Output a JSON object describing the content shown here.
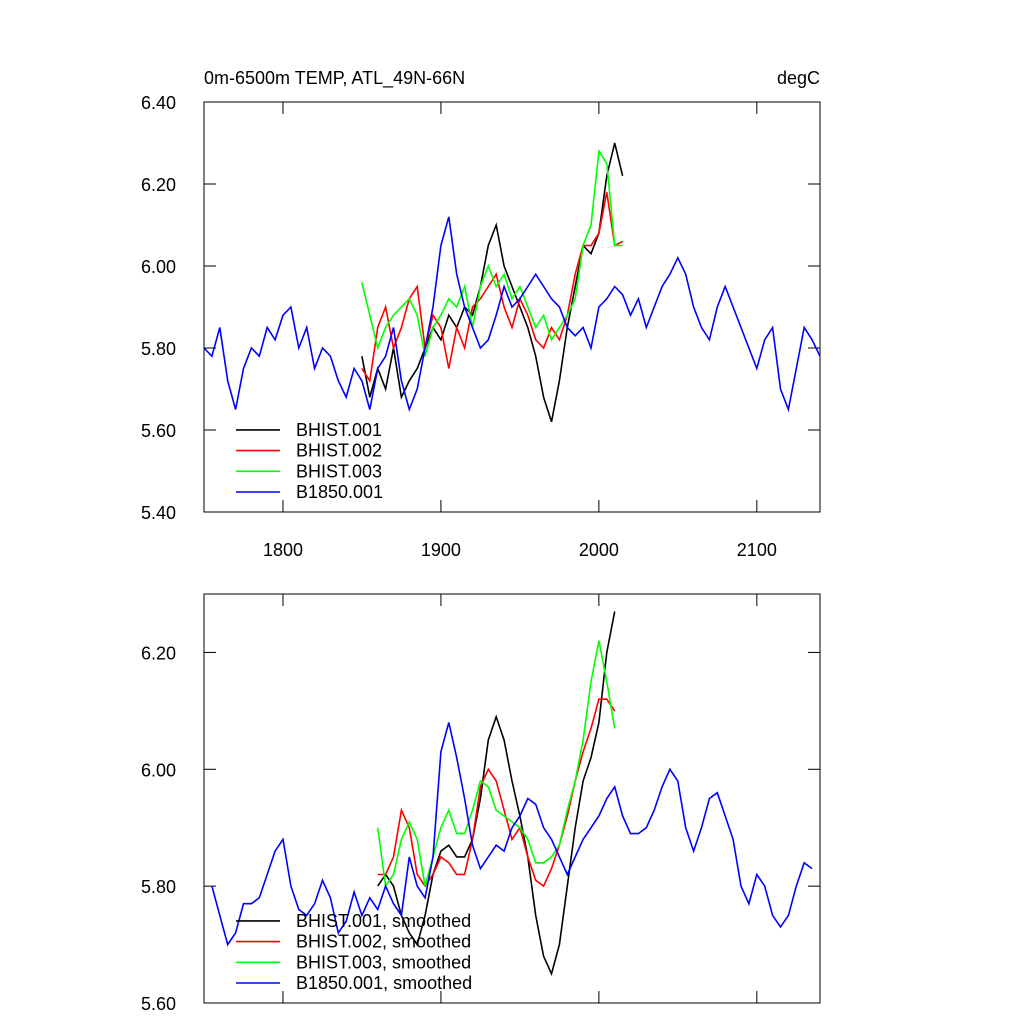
{
  "chart_data": [
    {
      "type": "line",
      "title": "0m-6500m TEMP, ATL_49N-66N",
      "units": "degC",
      "xlim": [
        1750,
        2140
      ],
      "xticks": [
        1800,
        1900,
        2000,
        2100
      ],
      "xtick_labels": true,
      "ylim": [
        5.4,
        6.4
      ],
      "yticks": [
        {
          "value": 5.4,
          "label": "5.40"
        },
        {
          "value": 5.6,
          "label": "5.60"
        },
        {
          "value": 5.8,
          "label": "5.80"
        },
        {
          "value": 6.0,
          "label": "6.00"
        },
        {
          "value": 6.2,
          "label": "6.20"
        },
        {
          "value": 6.4,
          "label": "6.40"
        }
      ],
      "legend": "lower left",
      "series": [
        {
          "name": "BHIST.001",
          "color": "#000000",
          "x": [
            1850,
            1855,
            1860,
            1865,
            1870,
            1875,
            1880,
            1885,
            1890,
            1895,
            1900,
            1905,
            1910,
            1915,
            1920,
            1925,
            1930,
            1935,
            1940,
            1945,
            1950,
            1955,
            1960,
            1965,
            1970,
            1975,
            1980,
            1985,
            1990,
            1995,
            2000,
            2005,
            2010,
            2015
          ],
          "values": [
            5.78,
            5.68,
            5.75,
            5.7,
            5.8,
            5.68,
            5.72,
            5.75,
            5.8,
            5.85,
            5.82,
            5.88,
            5.85,
            5.9,
            5.88,
            5.95,
            6.05,
            6.1,
            6.0,
            5.95,
            5.9,
            5.85,
            5.78,
            5.68,
            5.62,
            5.72,
            5.85,
            5.95,
            6.05,
            6.03,
            6.08,
            6.22,
            6.3,
            6.22
          ]
        },
        {
          "name": "BHIST.002",
          "color": "#ff0000",
          "x": [
            1850,
            1855,
            1860,
            1865,
            1870,
            1875,
            1880,
            1885,
            1890,
            1895,
            1900,
            1905,
            1910,
            1915,
            1920,
            1925,
            1930,
            1935,
            1940,
            1945,
            1950,
            1955,
            1960,
            1965,
            1970,
            1975,
            1980,
            1985,
            1990,
            1995,
            2000,
            2005,
            2010,
            2015
          ],
          "values": [
            5.75,
            5.72,
            5.85,
            5.9,
            5.8,
            5.85,
            5.92,
            5.95,
            5.8,
            5.88,
            5.85,
            5.75,
            5.85,
            5.8,
            5.9,
            5.92,
            5.95,
            5.98,
            5.9,
            5.85,
            5.92,
            5.88,
            5.82,
            5.8,
            5.85,
            5.82,
            5.88,
            5.98,
            6.05,
            6.05,
            6.08,
            6.18,
            6.05,
            6.06
          ]
        },
        {
          "name": "BHIST.003",
          "color": "#00ff00",
          "x": [
            1850,
            1855,
            1860,
            1865,
            1870,
            1875,
            1880,
            1885,
            1890,
            1895,
            1900,
            1905,
            1910,
            1915,
            1920,
            1925,
            1930,
            1935,
            1940,
            1945,
            1950,
            1955,
            1960,
            1965,
            1970,
            1975,
            1980,
            1985,
            1990,
            1995,
            2000,
            2005,
            2010,
            2015
          ],
          "values": [
            5.96,
            5.88,
            5.8,
            5.85,
            5.88,
            5.9,
            5.92,
            5.88,
            5.78,
            5.85,
            5.88,
            5.92,
            5.9,
            5.95,
            5.85,
            5.95,
            6.0,
            5.95,
            5.98,
            5.92,
            5.95,
            5.9,
            5.85,
            5.88,
            5.82,
            5.85,
            5.88,
            5.92,
            6.05,
            6.1,
            6.28,
            6.25,
            6.05,
            6.05
          ]
        },
        {
          "name": "B1850.001",
          "color": "#0000ff",
          "x": [
            1750,
            1755,
            1760,
            1765,
            1770,
            1775,
            1780,
            1785,
            1790,
            1795,
            1800,
            1805,
            1810,
            1815,
            1820,
            1825,
            1830,
            1835,
            1840,
            1845,
            1850,
            1855,
            1860,
            1865,
            1870,
            1875,
            1880,
            1885,
            1890,
            1895,
            1900,
            1905,
            1910,
            1915,
            1920,
            1925,
            1930,
            1935,
            1940,
            1945,
            1950,
            1955,
            1960,
            1965,
            1970,
            1975,
            1980,
            1985,
            1990,
            1995,
            2000,
            2005,
            2010,
            2015,
            2020,
            2025,
            2030,
            2035,
            2040,
            2045,
            2050,
            2055,
            2060,
            2065,
            2070,
            2075,
            2080,
            2085,
            2090,
            2095,
            2100,
            2105,
            2110,
            2115,
            2120,
            2125,
            2130,
            2135,
            2140
          ],
          "values": [
            5.8,
            5.78,
            5.85,
            5.72,
            5.65,
            5.75,
            5.8,
            5.78,
            5.85,
            5.82,
            5.88,
            5.9,
            5.8,
            5.85,
            5.75,
            5.8,
            5.78,
            5.72,
            5.68,
            5.75,
            5.72,
            5.65,
            5.75,
            5.78,
            5.85,
            5.72,
            5.65,
            5.7,
            5.8,
            5.9,
            6.05,
            6.12,
            5.98,
            5.9,
            5.85,
            5.8,
            5.82,
            5.88,
            5.95,
            5.9,
            5.92,
            5.95,
            5.98,
            5.95,
            5.92,
            5.9,
            5.85,
            5.83,
            5.85,
            5.8,
            5.9,
            5.92,
            5.95,
            5.93,
            5.88,
            5.92,
            5.85,
            5.9,
            5.95,
            5.98,
            6.02,
            5.98,
            5.9,
            5.85,
            5.82,
            5.9,
            5.95,
            5.9,
            5.85,
            5.8,
            5.75,
            5.82,
            5.85,
            5.7,
            5.65,
            5.75,
            5.85,
            5.82,
            5.78
          ]
        }
      ]
    },
    {
      "type": "line",
      "xlim": [
        1750,
        2140
      ],
      "xticks": [
        1800,
        1900,
        2000,
        2100
      ],
      "xtick_labels": false,
      "ylim": [
        5.6,
        6.3
      ],
      "yticks": [
        {
          "value": 5.6,
          "label": "5.60"
        },
        {
          "value": 5.8,
          "label": "5.80"
        },
        {
          "value": 6.0,
          "label": "6.00"
        },
        {
          "value": 6.2,
          "label": "6.20"
        }
      ],
      "legend": "lower left",
      "series": [
        {
          "name": "BHIST.001, smoothed",
          "color": "#000000",
          "x": [
            1860,
            1865,
            1870,
            1875,
            1880,
            1885,
            1890,
            1895,
            1900,
            1905,
            1910,
            1915,
            1920,
            1925,
            1930,
            1935,
            1940,
            1945,
            1950,
            1955,
            1960,
            1965,
            1970,
            1975,
            1980,
            1985,
            1990,
            1995,
            2000,
            2005,
            2010
          ],
          "values": [
            5.8,
            5.82,
            5.8,
            5.75,
            5.72,
            5.7,
            5.75,
            5.82,
            5.86,
            5.87,
            5.85,
            5.85,
            5.88,
            5.95,
            6.05,
            6.09,
            6.05,
            5.98,
            5.92,
            5.85,
            5.75,
            5.68,
            5.65,
            5.7,
            5.8,
            5.9,
            5.98,
            6.02,
            6.08,
            6.2,
            6.27
          ]
        },
        {
          "name": "BHIST.002, smoothed",
          "color": "#ff0000",
          "x": [
            1860,
            1865,
            1870,
            1875,
            1880,
            1885,
            1890,
            1895,
            1900,
            1905,
            1910,
            1915,
            1920,
            1925,
            1930,
            1935,
            1940,
            1945,
            1950,
            1955,
            1960,
            1965,
            1970,
            1975,
            1980,
            1985,
            1990,
            1995,
            2000,
            2005,
            2010
          ],
          "values": [
            5.82,
            5.82,
            5.85,
            5.93,
            5.9,
            5.82,
            5.8,
            5.82,
            5.85,
            5.84,
            5.82,
            5.82,
            5.88,
            5.97,
            6.0,
            5.98,
            5.93,
            5.88,
            5.9,
            5.85,
            5.81,
            5.8,
            5.83,
            5.87,
            5.92,
            5.98,
            6.03,
            6.07,
            6.12,
            6.12,
            6.1
          ]
        },
        {
          "name": "BHIST.003, smoothed",
          "color": "#00ff00",
          "x": [
            1860,
            1865,
            1870,
            1875,
            1880,
            1885,
            1890,
            1895,
            1900,
            1905,
            1910,
            1915,
            1920,
            1925,
            1930,
            1935,
            1940,
            1945,
            1950,
            1955,
            1960,
            1965,
            1970,
            1975,
            1980,
            1985,
            1990,
            1995,
            2000,
            2005,
            2010
          ],
          "values": [
            5.9,
            5.8,
            5.82,
            5.88,
            5.91,
            5.88,
            5.8,
            5.85,
            5.9,
            5.93,
            5.89,
            5.89,
            5.93,
            5.98,
            5.97,
            5.93,
            5.92,
            5.91,
            5.9,
            5.88,
            5.84,
            5.84,
            5.85,
            5.87,
            5.93,
            5.98,
            6.05,
            6.15,
            6.22,
            6.15,
            6.07
          ]
        },
        {
          "name": "B1850.001, smoothed",
          "color": "#0000ff",
          "x": [
            1755,
            1760,
            1765,
            1770,
            1775,
            1780,
            1785,
            1790,
            1795,
            1800,
            1805,
            1810,
            1815,
            1820,
            1825,
            1830,
            1835,
            1840,
            1845,
            1850,
            1855,
            1860,
            1865,
            1870,
            1875,
            1880,
            1885,
            1890,
            1895,
            1900,
            1905,
            1910,
            1915,
            1920,
            1925,
            1930,
            1935,
            1940,
            1945,
            1950,
            1955,
            1960,
            1965,
            1970,
            1975,
            1980,
            1985,
            1990,
            1995,
            2000,
            2005,
            2010,
            2015,
            2020,
            2025,
            2030,
            2035,
            2040,
            2045,
            2050,
            2055,
            2060,
            2065,
            2070,
            2075,
            2080,
            2085,
            2090,
            2095,
            2100,
            2105,
            2110,
            2115,
            2120,
            2125,
            2130,
            2135
          ],
          "values": [
            5.8,
            5.75,
            5.7,
            5.72,
            5.77,
            5.77,
            5.78,
            5.82,
            5.86,
            5.88,
            5.8,
            5.76,
            5.75,
            5.77,
            5.81,
            5.78,
            5.72,
            5.74,
            5.79,
            5.75,
            5.78,
            5.76,
            5.8,
            5.77,
            5.75,
            5.85,
            5.8,
            5.78,
            5.85,
            6.03,
            6.08,
            6.02,
            5.95,
            5.87,
            5.83,
            5.85,
            5.87,
            5.86,
            5.9,
            5.92,
            5.95,
            5.94,
            5.9,
            5.88,
            5.85,
            5.82,
            5.85,
            5.88,
            5.9,
            5.92,
            5.95,
            5.97,
            5.92,
            5.89,
            5.89,
            5.9,
            5.93,
            5.97,
            6.0,
            5.98,
            5.9,
            5.86,
            5.9,
            5.95,
            5.96,
            5.92,
            5.88,
            5.8,
            5.77,
            5.82,
            5.8,
            5.75,
            5.73,
            5.75,
            5.8,
            5.84,
            5.83
          ]
        }
      ]
    }
  ]
}
